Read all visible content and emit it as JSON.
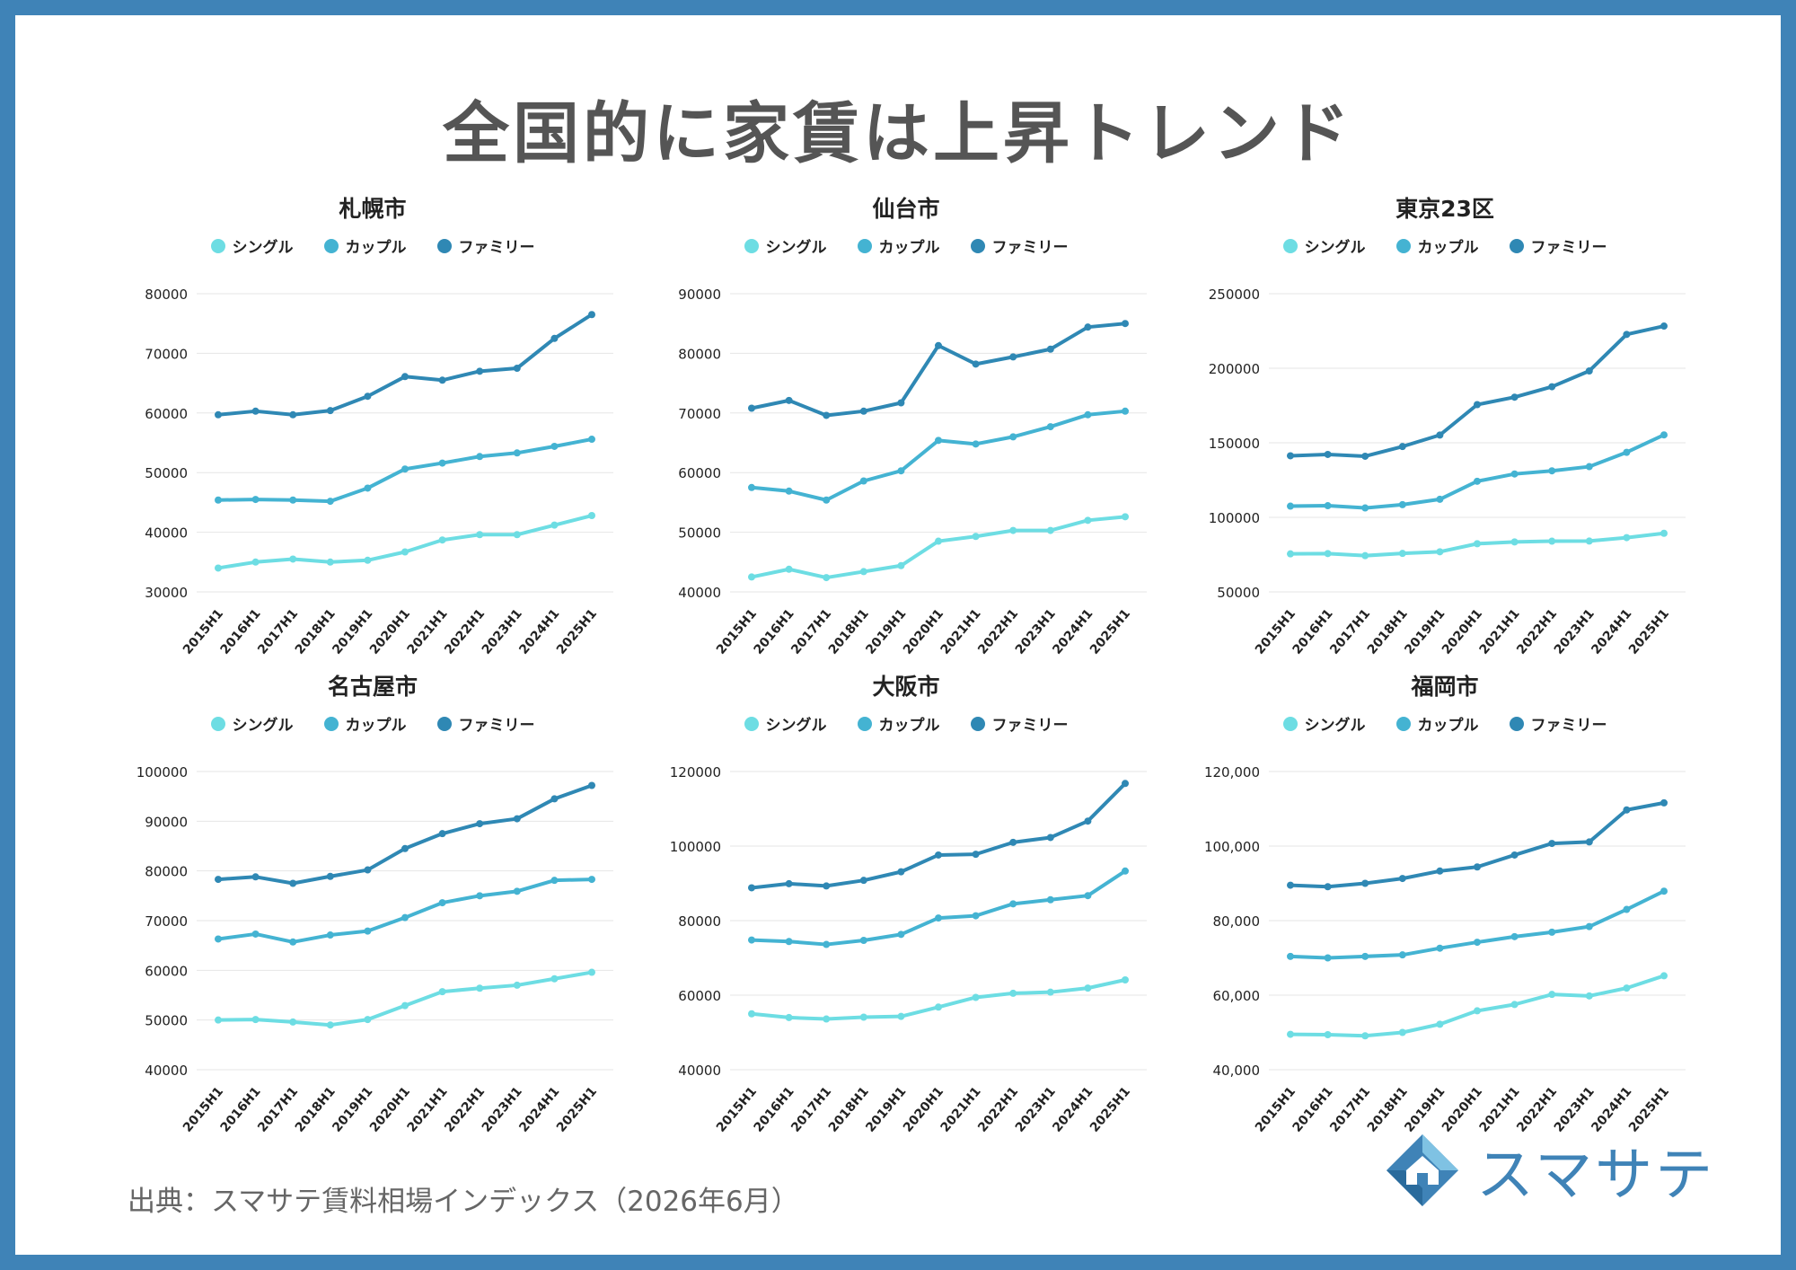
{
  "title": "全国的に家賃は上昇トレンド",
  "source": "出典：スマサテ賃料相場インデックス（2026年6月）",
  "logo": {
    "text": "スマサテ",
    "icon": "house-diamond-icon"
  },
  "colors": {
    "single": "#6ddde3",
    "couple": "#44b3d2",
    "family": "#2f88b4"
  },
  "chart_data": [
    {
      "type": "line",
      "title": "札幌市",
      "categories": [
        "2015H1",
        "2016H1",
        "2017H1",
        "2018H1",
        "2019H1",
        "2020H1",
        "2021H1",
        "2022H1",
        "2023H1",
        "2024H1",
        "2025H1"
      ],
      "ylim": [
        30000,
        80000
      ],
      "yticks": [
        "30000",
        "40000",
        "50000",
        "60000",
        "70000",
        "80000"
      ],
      "series": [
        {
          "name": "シングル",
          "values": [
            34000,
            35000,
            35500,
            35000,
            35300,
            36700,
            38700,
            39600,
            39600,
            41200,
            42800
          ]
        },
        {
          "name": "カップル",
          "values": [
            45400,
            45500,
            45400,
            45200,
            47400,
            50600,
            51600,
            52700,
            53300,
            54400,
            55600
          ]
        },
        {
          "name": "ファミリー",
          "values": [
            59700,
            60300,
            59700,
            60400,
            62800,
            66100,
            65500,
            67000,
            67500,
            72500,
            76500
          ]
        }
      ]
    },
    {
      "type": "line",
      "title": "仙台市",
      "categories": [
        "2015H1",
        "2016H1",
        "2017H1",
        "2018H1",
        "2019H1",
        "2020H1",
        "2021H1",
        "2022H1",
        "2023H1",
        "2024H1",
        "2025H1"
      ],
      "ylim": [
        40000,
        90000
      ],
      "yticks": [
        "40000",
        "50000",
        "60000",
        "70000",
        "80000",
        "90000"
      ],
      "series": [
        {
          "name": "シングル",
          "values": [
            42500,
            43800,
            42400,
            43400,
            44400,
            48500,
            49300,
            50300,
            50300,
            52000,
            52600
          ]
        },
        {
          "name": "カップル",
          "values": [
            57500,
            56900,
            55400,
            58600,
            60300,
            65400,
            64800,
            66000,
            67700,
            69700,
            70300
          ]
        },
        {
          "name": "ファミリー",
          "values": [
            70800,
            72100,
            69600,
            70300,
            71700,
            81300,
            78200,
            79400,
            80700,
            84400,
            85000
          ]
        }
      ]
    },
    {
      "type": "line",
      "title": "東京23区",
      "categories": [
        "2015H1",
        "2016H1",
        "2017H1",
        "2018H1",
        "2019H1",
        "2020H1",
        "2021H1",
        "2022H1",
        "2023H1",
        "2024H1",
        "2025H1"
      ],
      "ylim": [
        50000,
        250000
      ],
      "yticks": [
        "50000",
        "100000",
        "150000",
        "200000",
        "250000"
      ],
      "series": [
        {
          "name": "シングル",
          "values": [
            75500,
            75700,
            74300,
            75800,
            76900,
            82300,
            83500,
            84000,
            84100,
            86400,
            89300
          ]
        },
        {
          "name": "カップル",
          "values": [
            107500,
            107800,
            106300,
            108500,
            112100,
            124200,
            129100,
            131200,
            134000,
            143600,
            155300
          ]
        },
        {
          "name": "ファミリー",
          "values": [
            141300,
            142200,
            141000,
            147500,
            155200,
            175600,
            180600,
            187600,
            198200,
            222700,
            228300
          ]
        }
      ]
    },
    {
      "type": "line",
      "title": "名古屋市",
      "categories": [
        "2015H1",
        "2016H1",
        "2017H1",
        "2018H1",
        "2019H1",
        "2020H1",
        "2021H1",
        "2022H1",
        "2023H1",
        "2024H1",
        "2025H1"
      ],
      "ylim": [
        40000,
        100000
      ],
      "yticks": [
        "40000",
        "50000",
        "60000",
        "70000",
        "80000",
        "90000",
        "100000"
      ],
      "series": [
        {
          "name": "シングル",
          "values": [
            50000,
            50100,
            49600,
            49000,
            50100,
            52900,
            55700,
            56400,
            57000,
            58300,
            59600
          ]
        },
        {
          "name": "カップル",
          "values": [
            66300,
            67300,
            65700,
            67100,
            67900,
            70600,
            73600,
            75000,
            75900,
            78100,
            78300
          ]
        },
        {
          "name": "ファミリー",
          "values": [
            78300,
            78800,
            77500,
            78900,
            80200,
            84500,
            87500,
            89500,
            90500,
            94500,
            97200
          ]
        }
      ]
    },
    {
      "type": "line",
      "title": "大阪市",
      "categories": [
        "2015H1",
        "2016H1",
        "2017H1",
        "2018H1",
        "2019H1",
        "2020H1",
        "2021H1",
        "2022H1",
        "2023H1",
        "2024H1",
        "2025H1"
      ],
      "ylim": [
        40000,
        120000
      ],
      "yticks": [
        "40000",
        "60000",
        "80000",
        "100000",
        "120000"
      ],
      "series": [
        {
          "name": "シングル",
          "values": [
            55000,
            54000,
            53600,
            54100,
            54300,
            56800,
            59400,
            60500,
            60800,
            61900,
            64100
          ]
        },
        {
          "name": "カップル",
          "values": [
            74800,
            74400,
            73600,
            74700,
            76300,
            80700,
            81300,
            84500,
            85600,
            86700,
            93300
          ]
        },
        {
          "name": "ファミリー",
          "values": [
            88800,
            89900,
            89300,
            90800,
            93100,
            97600,
            97800,
            101000,
            102300,
            106700,
            116800
          ]
        }
      ]
    },
    {
      "type": "line",
      "title": "福岡市",
      "categories": [
        "2015H1",
        "2016H1",
        "2017H1",
        "2018H1",
        "2019H1",
        "2020H1",
        "2021H1",
        "2022H1",
        "2023H1",
        "2024H1",
        "2025H1"
      ],
      "ylim": [
        40000,
        120000
      ],
      "yticks": [
        "40,000",
        "60,000",
        "80,000",
        "100,000",
        "120,000"
      ],
      "series": [
        {
          "name": "シングル",
          "values": [
            49500,
            49400,
            49100,
            50000,
            52200,
            55800,
            57500,
            60200,
            59800,
            61900,
            65200
          ]
        },
        {
          "name": "カップル",
          "values": [
            70400,
            70000,
            70400,
            70800,
            72600,
            74200,
            75700,
            76900,
            78400,
            83000,
            87900
          ]
        },
        {
          "name": "ファミリー",
          "values": [
            89500,
            89100,
            90000,
            91300,
            93300,
            94400,
            97600,
            100700,
            101100,
            109700,
            111600
          ]
        }
      ]
    }
  ]
}
